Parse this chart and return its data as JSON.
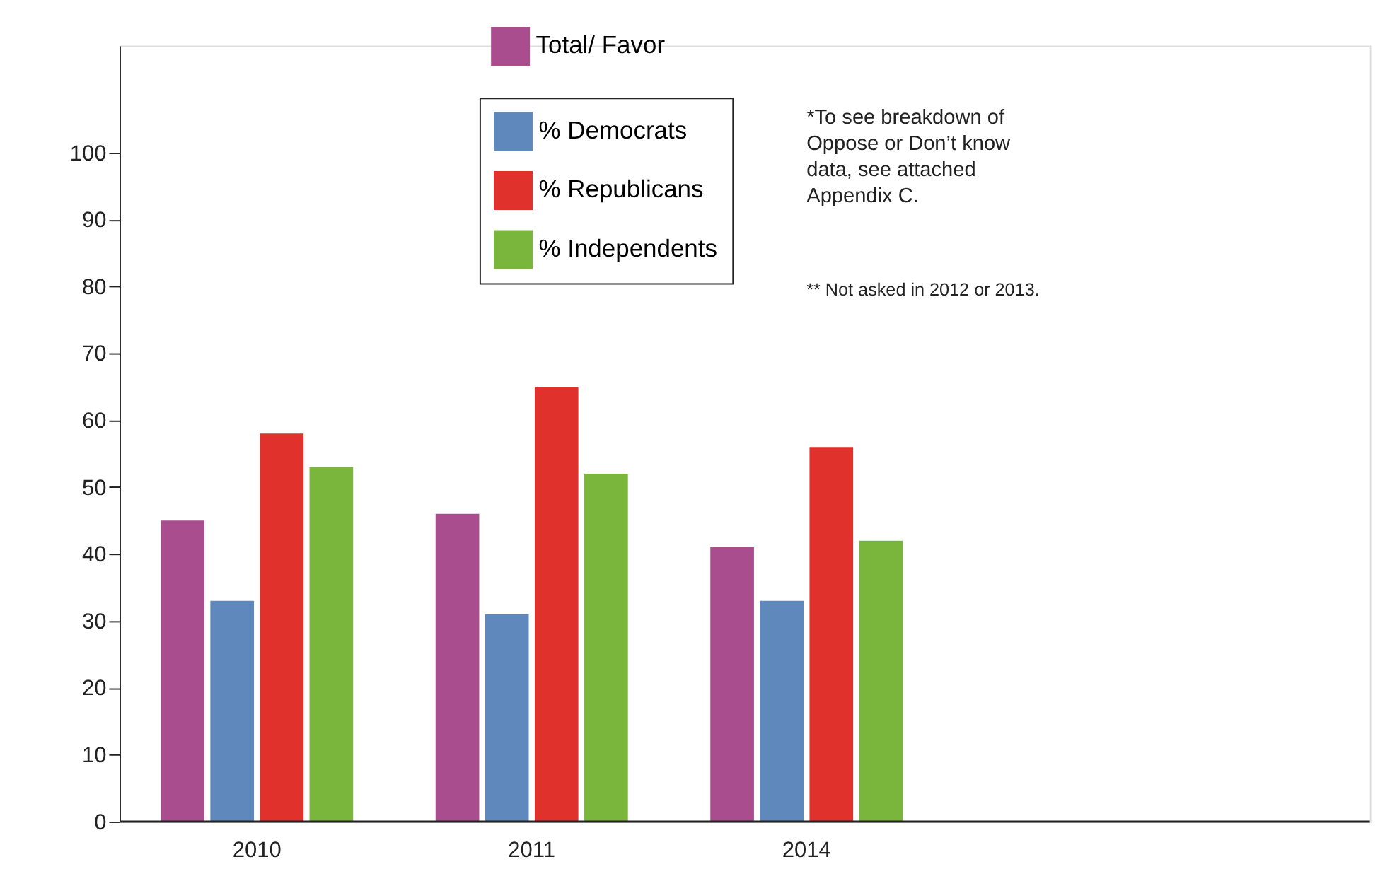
{
  "chart_data": {
    "type": "bar",
    "categories": [
      "2010",
      "2011",
      "2014"
    ],
    "series": [
      {
        "name": "Total/ Favor",
        "color": "#a94d8f",
        "values": [
          45,
          46,
          41
        ]
      },
      {
        "name": "% Democrats",
        "color": "#5f89bd",
        "values": [
          33,
          31,
          33
        ]
      },
      {
        "name": "% Republicans",
        "color": "#e0312c",
        "values": [
          58,
          65,
          56
        ]
      },
      {
        "name": "% Independents",
        "color": "#7ab63c",
        "values": [
          53,
          52,
          42
        ]
      }
    ],
    "ylim": [
      0,
      116
    ],
    "yticks": [
      0,
      10,
      20,
      30,
      40,
      50,
      60,
      70,
      80,
      90,
      100
    ],
    "grid": false,
    "legend": "top",
    "annotations": [
      "*To see breakdown of\nOppose or Don’t know\ndata, see attached\nAppendix C.",
      "** Not asked in 2012 or 2013."
    ]
  }
}
